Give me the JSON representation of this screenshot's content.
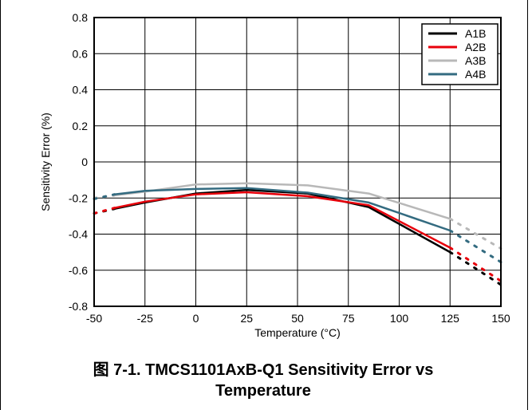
{
  "caption": {
    "line1": "图 7-1. TMCS1101AxB-Q1 Sensitivity Error vs",
    "line2": "Temperature"
  },
  "chart_data": {
    "type": "line",
    "xlabel": "Temperature (°C)",
    "ylabel": "Sensitivity Error (%)",
    "xlim": [
      -50,
      150
    ],
    "ylim": [
      -0.8,
      0.8
    ],
    "xticks": [
      -50,
      -25,
      0,
      25,
      50,
      75,
      100,
      125,
      150
    ],
    "xtick_labels": [
      "-50",
      "-25",
      "0",
      "25",
      "50",
      "75",
      "100",
      "125",
      "150"
    ],
    "yticks": [
      -0.8,
      -0.6,
      -0.4,
      -0.2,
      0,
      0.2,
      0.4,
      0.6,
      0.8
    ],
    "ytick_labels": [
      "-0.8",
      "-0.6",
      "-0.4",
      "-0.2",
      "0",
      "0.2",
      "0.4",
      "0.6",
      "0.8"
    ],
    "grid": true,
    "legend_position": "top-right",
    "series": [
      {
        "name": "A1B",
        "color": "#000000",
        "solid": {
          "x": [
            -40,
            -25,
            0,
            25,
            55,
            85,
            125
          ],
          "y": [
            -0.26,
            -0.225,
            -0.175,
            -0.155,
            -0.175,
            -0.25,
            -0.5
          ]
        },
        "dotted": [
          {
            "x": [
              -50,
              -40
            ],
            "y": [
              -0.285,
              -0.26
            ]
          },
          {
            "x": [
              125,
              150
            ],
            "y": [
              -0.5,
              -0.68
            ]
          }
        ]
      },
      {
        "name": "A2B",
        "color": "#e8000b",
        "solid": {
          "x": [
            -40,
            -25,
            0,
            25,
            55,
            85,
            125
          ],
          "y": [
            -0.255,
            -0.22,
            -0.18,
            -0.168,
            -0.19,
            -0.24,
            -0.475
          ]
        },
        "dotted": [
          {
            "x": [
              -50,
              -40
            ],
            "y": [
              -0.285,
              -0.255
            ]
          },
          {
            "x": [
              125,
              150
            ],
            "y": [
              -0.475,
              -0.66
            ]
          }
        ]
      },
      {
        "name": "A3B",
        "color": "#b8b8b8",
        "solid": {
          "x": [
            -40,
            -25,
            0,
            25,
            55,
            85,
            125
          ],
          "y": [
            -0.185,
            -0.165,
            -0.125,
            -0.118,
            -0.13,
            -0.175,
            -0.315
          ]
        },
        "dotted": [
          {
            "x": [
              -50,
              -40
            ],
            "y": [
              -0.2,
              -0.185
            ]
          },
          {
            "x": [
              125,
              150
            ],
            "y": [
              -0.315,
              -0.48
            ]
          }
        ]
      },
      {
        "name": "A4B",
        "color": "#336b80",
        "solid": {
          "x": [
            -40,
            -25,
            0,
            25,
            55,
            85,
            125
          ],
          "y": [
            -0.18,
            -0.16,
            -0.15,
            -0.145,
            -0.17,
            -0.225,
            -0.38
          ]
        },
        "dotted": [
          {
            "x": [
              -50,
              -40
            ],
            "y": [
              -0.205,
              -0.18
            ]
          },
          {
            "x": [
              125,
              150
            ],
            "y": [
              -0.38,
              -0.555
            ]
          }
        ]
      }
    ]
  }
}
